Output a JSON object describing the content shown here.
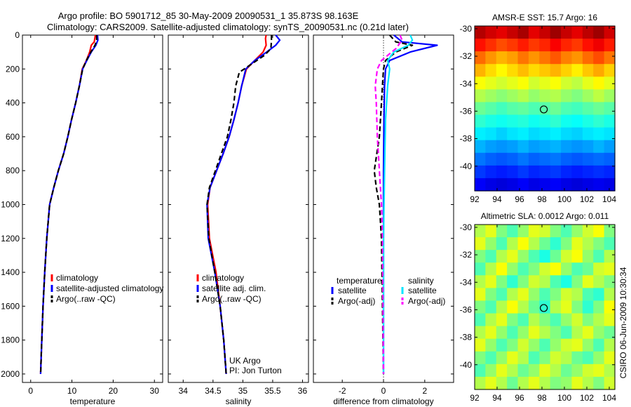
{
  "header": {
    "line1": "Argo profile: BO 5901712_85 30-May-2009 20090531_1 35.873S 98.163E",
    "line2": "Climatology: CARS2009. Satellite-adjusted climatology: synTS_20090531.nc (0.21d later)"
  },
  "side_label": "CSIRO 06-Jun-2009 10:30:34",
  "chart_data": [
    {
      "id": "temperature",
      "type": "line",
      "xlabel": "temperature",
      "ylabel": "",
      "xlim": [
        -2,
        32
      ],
      "ylim": [
        2050,
        0
      ],
      "xticks": [
        0,
        10,
        20,
        30
      ],
      "yticks": [
        0,
        200,
        400,
        600,
        800,
        1000,
        1200,
        1400,
        1600,
        1800,
        2000
      ],
      "legend": "bottom-left",
      "series": [
        {
          "name": "climatology",
          "color": "#ff0000",
          "dash": "solid",
          "x": [
            15.7,
            15.4,
            14.7,
            14.3,
            13.5,
            12.5,
            11.8,
            10.9,
            9.9,
            9.0,
            8.0,
            6.7,
            5.6,
            4.6,
            3.9,
            3.4,
            3.0,
            2.7,
            2.4
          ],
          "y": [
            0,
            40,
            60,
            100,
            150,
            200,
            300,
            400,
            500,
            600,
            700,
            800,
            900,
            1000,
            1200,
            1400,
            1600,
            1800,
            2000
          ]
        },
        {
          "name": "satellite-adjusted climatology",
          "color": "#0000ff",
          "dash": "solid",
          "x": [
            16.2,
            16.3,
            15.8,
            14.7,
            13.6,
            12.6,
            11.8,
            10.9,
            9.9,
            9.0,
            8.0,
            6.7,
            5.6,
            4.6,
            3.9,
            3.4,
            3.0,
            2.7,
            2.4
          ],
          "y": [
            0,
            30,
            60,
            100,
            150,
            200,
            300,
            400,
            500,
            600,
            700,
            800,
            900,
            1000,
            1200,
            1400,
            1600,
            1800,
            2000
          ]
        },
        {
          "name": "Argo(..raw -QC)",
          "color": "#000000",
          "dash": "dashed",
          "x": [
            16.0,
            16.0,
            15.6,
            14.6,
            13.5,
            12.6,
            11.8,
            10.9,
            9.9,
            9.0,
            8.0,
            6.7,
            5.6,
            4.6,
            3.9,
            3.4,
            3.0,
            2.7,
            2.4
          ],
          "y": [
            0,
            30,
            60,
            100,
            150,
            200,
            300,
            400,
            500,
            600,
            700,
            800,
            900,
            1000,
            1200,
            1400,
            1600,
            1800,
            2000
          ]
        }
      ]
    },
    {
      "id": "salinity",
      "type": "line",
      "xlabel": "salinity",
      "ylabel": "",
      "xlim": [
        33.75,
        36.1
      ],
      "ylim": [
        2050,
        0
      ],
      "xticks": [
        34,
        34.5,
        35,
        35.5,
        36
      ],
      "yticks": [
        0,
        200,
        400,
        600,
        800,
        1000,
        1200,
        1400,
        1600,
        1800,
        2000
      ],
      "legend": "bottom-left",
      "annotation": [
        "UK Argo",
        "PI: Jon Turton"
      ],
      "series": [
        {
          "name": "climatology",
          "color": "#ff0000",
          "dash": "solid",
          "x": [
            35.39,
            35.38,
            35.39,
            35.34,
            35.2,
            35.06,
            34.98,
            34.92,
            34.85,
            34.77,
            34.67,
            34.56,
            34.45,
            34.41,
            34.44,
            34.55,
            34.62,
            34.68,
            34.72
          ],
          "y": [
            0,
            20,
            60,
            100,
            150,
            200,
            300,
            400,
            500,
            600,
            700,
            800,
            900,
            1000,
            1200,
            1400,
            1600,
            1800,
            2000
          ]
        },
        {
          "name": "satellite adj. clim.",
          "color": "#0000ff",
          "dash": "solid",
          "x": [
            35.55,
            35.62,
            35.55,
            35.4,
            35.2,
            35.05,
            34.98,
            34.92,
            34.85,
            34.77,
            34.67,
            34.56,
            34.45,
            34.4,
            34.42,
            34.53,
            34.62,
            34.68,
            34.72
          ],
          "y": [
            0,
            30,
            60,
            100,
            150,
            200,
            300,
            400,
            500,
            600,
            700,
            800,
            900,
            1000,
            1200,
            1400,
            1600,
            1800,
            2000
          ]
        },
        {
          "name": "Argo(..raw -QC)",
          "color": "#000000",
          "dash": "dashed",
          "x": [
            35.48,
            35.48,
            35.47,
            35.36,
            35.15,
            34.94,
            34.88,
            34.85,
            34.8,
            34.74,
            34.64,
            34.54,
            34.44,
            34.4,
            34.43,
            34.53,
            34.62,
            34.68,
            34.72
          ],
          "y": [
            0,
            30,
            80,
            120,
            170,
            220,
            300,
            400,
            500,
            600,
            700,
            800,
            900,
            1000,
            1200,
            1400,
            1600,
            1800,
            2000
          ]
        }
      ]
    },
    {
      "id": "difference",
      "type": "line",
      "xlabel": "difference from climatology",
      "ylabel": "",
      "xlim": [
        -3.4,
        3.4
      ],
      "ylim": [
        2050,
        0
      ],
      "xticks": [
        -2,
        0,
        2
      ],
      "yticks": [
        0,
        200,
        400,
        600,
        800,
        1000,
        1200,
        1400,
        1600,
        1800,
        2000
      ],
      "zero_line": true,
      "legend": "bottom",
      "legend_headers": [
        "temperature",
        "salinity"
      ],
      "series": [
        {
          "name": "satellite",
          "group": "temperature",
          "color": "#0000ff",
          "dash": "solid",
          "x": [
            0.5,
            0.9,
            2.6,
            1.3,
            0.3,
            0.1,
            0.05,
            0.02,
            0.0,
            0.0,
            0.0
          ],
          "y": [
            0,
            40,
            60,
            100,
            150,
            200,
            300,
            500,
            800,
            1200,
            2000
          ]
        },
        {
          "name": "Argo(-adj)",
          "group": "temperature",
          "color": "#000000",
          "dash": "dashed",
          "x": [
            0.3,
            0.6,
            1.4,
            0.6,
            0.1,
            0.0,
            -0.05,
            -0.1,
            -0.2,
            -0.45,
            -0.35,
            -0.2,
            -0.1,
            -0.05,
            0.0
          ],
          "y": [
            0,
            40,
            60,
            100,
            150,
            200,
            300,
            400,
            600,
            800,
            900,
            1000,
            1200,
            1600,
            2000
          ]
        },
        {
          "name": "satellite",
          "group": "salinity",
          "color": "#00e5ff",
          "dash": "solid",
          "x": [
            1.3,
            1.4,
            1.2,
            0.5,
            0.2,
            0.3,
            0.2,
            0.1,
            0.05,
            0.0,
            0.0,
            0.0
          ],
          "y": [
            0,
            30,
            60,
            100,
            150,
            200,
            300,
            500,
            800,
            1200,
            1600,
            2000
          ]
        },
        {
          "name": "Argo(-adj)",
          "group": "salinity",
          "color": "#ff00ff",
          "dash": "dashed",
          "x": [
            0.8,
            0.9,
            0.6,
            -0.1,
            -0.3,
            -0.4,
            -0.35,
            -0.3,
            -0.2,
            -0.1,
            -0.05,
            0.0
          ],
          "y": [
            0,
            30,
            80,
            150,
            200,
            300,
            400,
            600,
            800,
            1000,
            1200,
            2000
          ]
        }
      ]
    },
    {
      "id": "sst_map",
      "type": "heatmap",
      "title": "AMSR-E SST: 15.7 Argo: 16",
      "xlim": [
        92,
        104.5
      ],
      "ylim": [
        -41.8,
        -29.8
      ],
      "xticks": [
        92,
        94,
        96,
        98,
        100,
        102,
        104
      ],
      "yticks": [
        -30,
        -32,
        -34,
        -36,
        -38,
        -40
      ],
      "marker": {
        "x": 98.163,
        "y": -35.873
      },
      "colorscale": "jet",
      "grid": [
        [
          0.95,
          0.92,
          0.9,
          0.93,
          0.96,
          0.9,
          0.93,
          0.97,
          0.93,
          0.9,
          0.94,
          0.97,
          0.92
        ],
        [
          0.86,
          0.83,
          0.8,
          0.82,
          0.85,
          0.82,
          0.84,
          0.88,
          0.84,
          0.82,
          0.86,
          0.89,
          0.85
        ],
        [
          0.77,
          0.73,
          0.7,
          0.72,
          0.76,
          0.73,
          0.76,
          0.79,
          0.75,
          0.73,
          0.77,
          0.8,
          0.76
        ],
        [
          0.7,
          0.66,
          0.63,
          0.66,
          0.69,
          0.66,
          0.68,
          0.7,
          0.67,
          0.64,
          0.68,
          0.71,
          0.67
        ],
        [
          0.62,
          0.6,
          0.58,
          0.6,
          0.62,
          0.58,
          0.6,
          0.62,
          0.58,
          0.56,
          0.6,
          0.63,
          0.6
        ],
        [
          0.55,
          0.53,
          0.51,
          0.53,
          0.55,
          0.52,
          0.54,
          0.55,
          0.52,
          0.5,
          0.53,
          0.56,
          0.53
        ],
        [
          0.48,
          0.46,
          0.44,
          0.46,
          0.47,
          0.45,
          0.46,
          0.48,
          0.45,
          0.44,
          0.46,
          0.48,
          0.46
        ],
        [
          0.42,
          0.4,
          0.39,
          0.4,
          0.41,
          0.39,
          0.4,
          0.42,
          0.39,
          0.38,
          0.4,
          0.42,
          0.4
        ],
        [
          0.36,
          0.35,
          0.33,
          0.35,
          0.36,
          0.34,
          0.35,
          0.36,
          0.34,
          0.33,
          0.35,
          0.36,
          0.35
        ],
        [
          0.3,
          0.28,
          0.27,
          0.28,
          0.3,
          0.28,
          0.29,
          0.3,
          0.28,
          0.27,
          0.28,
          0.3,
          0.28
        ],
        [
          0.24,
          0.22,
          0.21,
          0.22,
          0.24,
          0.22,
          0.23,
          0.24,
          0.22,
          0.21,
          0.22,
          0.23,
          0.22
        ],
        [
          0.18,
          0.16,
          0.15,
          0.16,
          0.18,
          0.16,
          0.17,
          0.18,
          0.16,
          0.15,
          0.16,
          0.17,
          0.16
        ],
        [
          0.12,
          0.1,
          0.09,
          0.1,
          0.12,
          0.1,
          0.11,
          0.12,
          0.1,
          0.09,
          0.1,
          0.11,
          0.1
        ]
      ]
    },
    {
      "id": "sla_map",
      "type": "heatmap",
      "title": "Altimetric SLA: 0.0012 Argo: 0.011",
      "xlim": [
        92,
        104.5
      ],
      "ylim": [
        -41.8,
        -29.8
      ],
      "xticks": [
        92,
        94,
        96,
        98,
        100,
        102,
        104
      ],
      "yticks": [
        -30,
        -32,
        -34,
        -36,
        -38,
        -40
      ],
      "marker": {
        "x": 98.163,
        "y": -35.873
      },
      "colorscale": "jet",
      "grid": [
        [
          0.55,
          0.6,
          0.5,
          0.45,
          0.52,
          0.6,
          0.58,
          0.5,
          0.45,
          0.52,
          0.58,
          0.62,
          0.5
        ],
        [
          0.6,
          0.52,
          0.45,
          0.55,
          0.62,
          0.55,
          0.48,
          0.42,
          0.5,
          0.6,
          0.55,
          0.5,
          0.45
        ],
        [
          0.5,
          0.45,
          0.55,
          0.6,
          0.52,
          0.45,
          0.4,
          0.48,
          0.58,
          0.62,
          0.52,
          0.45,
          0.55
        ],
        [
          0.45,
          0.55,
          0.62,
          0.52,
          0.45,
          0.5,
          0.58,
          0.62,
          0.52,
          0.45,
          0.48,
          0.58,
          0.6
        ],
        [
          0.55,
          0.6,
          0.5,
          0.42,
          0.5,
          0.58,
          0.55,
          0.45,
          0.4,
          0.5,
          0.6,
          0.55,
          0.5
        ],
        [
          0.6,
          0.5,
          0.45,
          0.55,
          0.6,
          0.52,
          0.45,
          0.5,
          0.58,
          0.55,
          0.45,
          0.42,
          0.55
        ],
        [
          0.5,
          0.45,
          0.55,
          0.62,
          0.55,
          0.48,
          0.42,
          0.55,
          0.6,
          0.5,
          0.42,
          0.5,
          0.62
        ],
        [
          0.45,
          0.55,
          0.6,
          0.5,
          0.45,
          0.55,
          0.5,
          0.45,
          0.52,
          0.58,
          0.5,
          0.55,
          0.6
        ],
        [
          0.55,
          0.6,
          0.52,
          0.45,
          0.52,
          0.6,
          0.55,
          0.5,
          0.45,
          0.55,
          0.6,
          0.52,
          0.48
        ],
        [
          0.6,
          0.52,
          0.45,
          0.5,
          0.58,
          0.52,
          0.45,
          0.52,
          0.58,
          0.6,
          0.52,
          0.45,
          0.55
        ],
        [
          0.5,
          0.45,
          0.52,
          0.6,
          0.55,
          0.45,
          0.5,
          0.58,
          0.55,
          0.48,
          0.45,
          0.52,
          0.6
        ],
        [
          0.45,
          0.52,
          0.6,
          0.55,
          0.48,
          0.52,
          0.6,
          0.55,
          0.48,
          0.52,
          0.58,
          0.6,
          0.55
        ],
        [
          0.55,
          0.6,
          0.55,
          0.48,
          0.55,
          0.6,
          0.55,
          0.5,
          0.52,
          0.6,
          0.55,
          0.5,
          0.58
        ]
      ]
    }
  ]
}
